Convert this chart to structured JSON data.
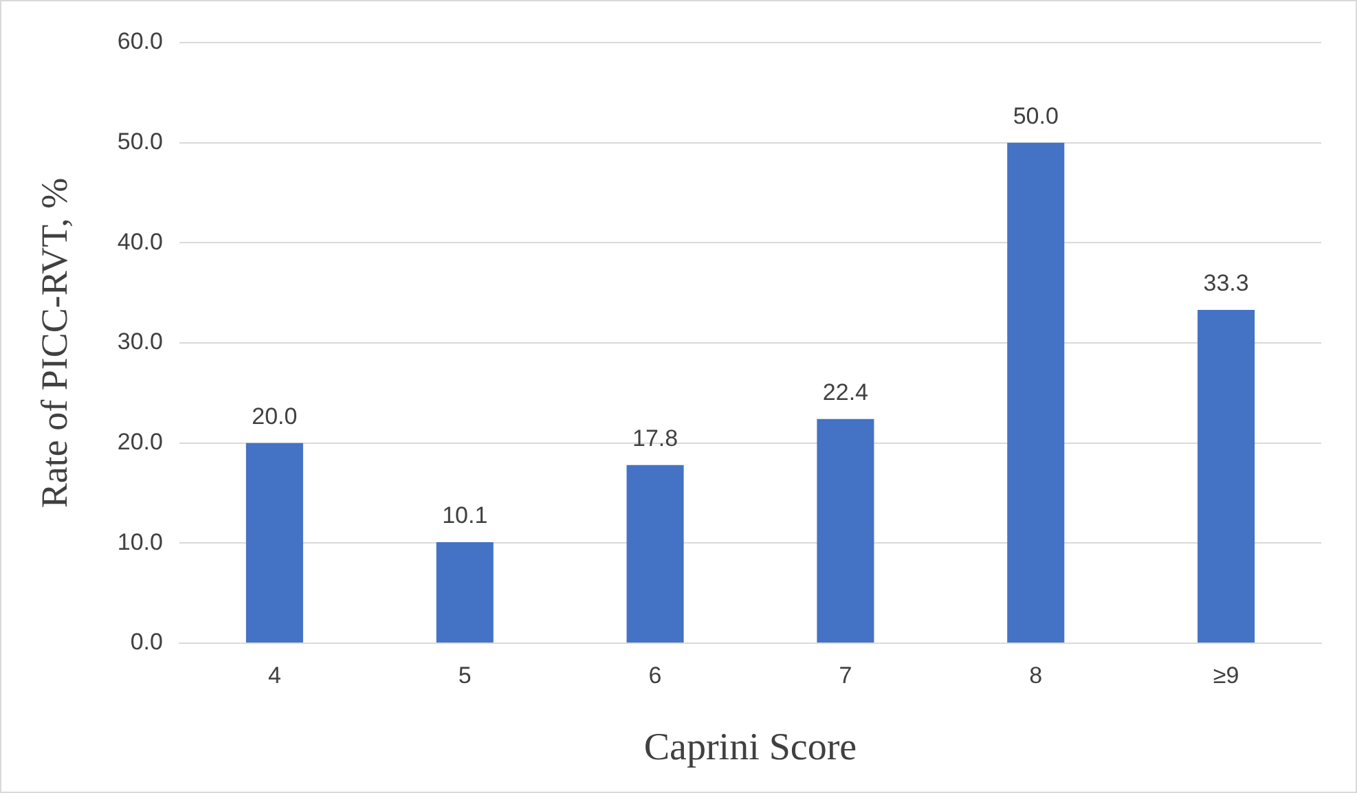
{
  "chart_data": {
    "type": "bar",
    "xlabel": "Caprini Score",
    "ylabel": "Rate of PICC-RVT, %",
    "categories": [
      "4",
      "5",
      "6",
      "7",
      "8",
      "≥9"
    ],
    "values": [
      20.0,
      10.1,
      17.8,
      22.4,
      50.0,
      33.3
    ],
    "value_labels": [
      "20.0",
      "10.1",
      "17.8",
      "22.4",
      "50.0",
      "33.3"
    ],
    "color": "#4472c4",
    "ylim": [
      0,
      60
    ],
    "yticks": [
      {
        "value": 0,
        "label": "0.0"
      },
      {
        "value": 10,
        "label": "10.0"
      },
      {
        "value": 20,
        "label": "20.0"
      },
      {
        "value": 30,
        "label": "30.0"
      },
      {
        "value": 40,
        "label": "40.0"
      },
      {
        "value": 50,
        "label": "50.0"
      },
      {
        "value": 60,
        "label": "60.0"
      }
    ],
    "grid": "y",
    "legend": false
  }
}
